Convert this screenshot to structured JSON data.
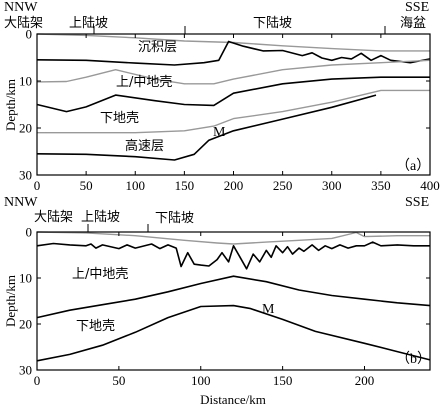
{
  "chart_data": [
    {
      "type": "line",
      "panel_label": "（a）",
      "orientation_left": "NNW",
      "orientation_right": "SSE",
      "top_labels": [
        "大陆架",
        "上陆坡",
        "下陆坡",
        "海盆"
      ],
      "ylabel": "Depth/km",
      "xlim": [
        0,
        400
      ],
      "ylim": [
        0,
        30
      ],
      "y_inverted": true,
      "xticks": [
        0,
        50,
        100,
        150,
        200,
        250,
        300,
        350,
        400
      ],
      "yticks": [
        0,
        10,
        20,
        30
      ],
      "layer_labels": [
        "沉积层",
        "上/中地壳",
        "下地壳",
        "高速层",
        "M"
      ],
      "series": [
        {
          "color": "#999999",
          "x": [
            0,
            50,
            100,
            150,
            200,
            250,
            300,
            350,
            400
          ],
          "y": [
            0,
            0.3,
            0.8,
            1.5,
            1.8,
            2.5,
            3.1,
            3.6,
            3.6
          ]
        },
        {
          "color": "#000000",
          "x": [
            0,
            50,
            100,
            140,
            170,
            185,
            195,
            210,
            230,
            250,
            270,
            280,
            290,
            300,
            310,
            320,
            330,
            340,
            350,
            360,
            380,
            400
          ],
          "y": [
            5.5,
            5.6,
            6.2,
            6.6,
            6.1,
            5.6,
            1.6,
            2.6,
            3.6,
            3.5,
            4.6,
            4.0,
            5.1,
            5.6,
            5.0,
            5.3,
            4.1,
            5.6,
            4.6,
            5.6,
            6.1,
            5.3
          ]
        },
        {
          "color": "#999999",
          "x": [
            0,
            30,
            50,
            80,
            120,
            150,
            180,
            200,
            250,
            300,
            350,
            400
          ],
          "y": [
            10.2,
            10.1,
            9.2,
            7.6,
            9.6,
            10.6,
            10.6,
            9.6,
            7.6,
            6.6,
            6.1,
            5.6
          ]
        },
        {
          "color": "#000000",
          "x": [
            0,
            30,
            50,
            80,
            120,
            150,
            180,
            200,
            250,
            300,
            350,
            400
          ],
          "y": [
            15,
            16.5,
            15.5,
            13,
            14.2,
            15,
            15.2,
            12.6,
            10.6,
            9.6,
            9.2,
            9.2
          ]
        },
        {
          "color": "#999999",
          "x": [
            0,
            100,
            150,
            180,
            200,
            250,
            300,
            350,
            400
          ],
          "y": [
            21,
            21,
            20.6,
            19.6,
            18,
            16.5,
            14.5,
            12,
            12
          ]
        },
        {
          "color": "#000000",
          "x": [
            0,
            50,
            100,
            140,
            160,
            175,
            200,
            250,
            300,
            345
          ],
          "y": [
            25.5,
            25.6,
            26.1,
            26.8,
            25.6,
            22.6,
            20.6,
            18.1,
            15.6,
            13
          ]
        }
      ]
    },
    {
      "type": "line",
      "panel_label": "（b）",
      "orientation_left": "NNW",
      "orientation_right": "SSE",
      "top_labels": [
        "大陆架",
        "上陆坡",
        "下陆坡"
      ],
      "xlabel": "Distance/km",
      "ylabel": "Depth/km",
      "xlim": [
        0,
        240
      ],
      "ylim": [
        0,
        30
      ],
      "y_inverted": true,
      "xticks": [
        0,
        50,
        100,
        150,
        200
      ],
      "yticks": [
        0,
        10,
        20,
        30
      ],
      "layer_labels": [
        "上/中地壳",
        "下地壳",
        "M"
      ],
      "series": [
        {
          "color": "#999999",
          "x": [
            0,
            30,
            60,
            90,
            110,
            120,
            140,
            160,
            180,
            195,
            200,
            220,
            240
          ],
          "y": [
            0,
            0.2,
            0.8,
            1.8,
            2.4,
            2.6,
            2.2,
            1.8,
            1.4,
            0.1,
            1.0,
            0.8,
            0.8
          ]
        },
        {
          "color": "#000000",
          "x": [
            0,
            10,
            20,
            30,
            33,
            36,
            40,
            50,
            55,
            60,
            70,
            75,
            80,
            85,
            88,
            92,
            96,
            100,
            105,
            110,
            113,
            117,
            120,
            124,
            128,
            132,
            136,
            140,
            143,
            146,
            150,
            153,
            156,
            160,
            163,
            168,
            172,
            176,
            180,
            185,
            190,
            195,
            200,
            205,
            210,
            220,
            230,
            240
          ],
          "y": [
            3.0,
            2.5,
            2.8,
            3.0,
            2.6,
            3.5,
            2.8,
            3.6,
            2.8,
            3.5,
            2.6,
            3.6,
            2.8,
            3.5,
            7.5,
            4.5,
            7.0,
            7.2,
            7.4,
            6.0,
            4.5,
            6.5,
            3.0,
            5.5,
            8.0,
            4.8,
            6.5,
            4.0,
            5.5,
            3.0,
            4.5,
            3.2,
            4.8,
            3.5,
            4.2,
            2.8,
            4.0,
            3.0,
            3.6,
            2.8,
            3.5,
            3.0,
            3.0,
            2.2,
            3.0,
            2.8,
            3.0,
            3.0
          ]
        },
        {
          "color": "#000000",
          "x": [
            0,
            20,
            40,
            60,
            80,
            100,
            120,
            140,
            160,
            180,
            200,
            220,
            240
          ],
          "y": [
            18.6,
            17.0,
            15.8,
            14.6,
            13.0,
            11.2,
            9.6,
            10.8,
            12.6,
            13.8,
            14.6,
            15.4,
            16.0
          ]
        },
        {
          "color": "#000000",
          "x": [
            0,
            20,
            40,
            60,
            80,
            100,
            120,
            130,
            150,
            170,
            200,
            220,
            240
          ],
          "y": [
            28.0,
            26.6,
            24.6,
            21.8,
            18.6,
            16.2,
            16.0,
            16.6,
            19.0,
            21.6,
            24.2,
            26.0,
            27.8
          ]
        }
      ]
    }
  ],
  "ui": {
    "a": {
      "m_label": "M"
    },
    "b": {
      "m_label": "M"
    }
  }
}
